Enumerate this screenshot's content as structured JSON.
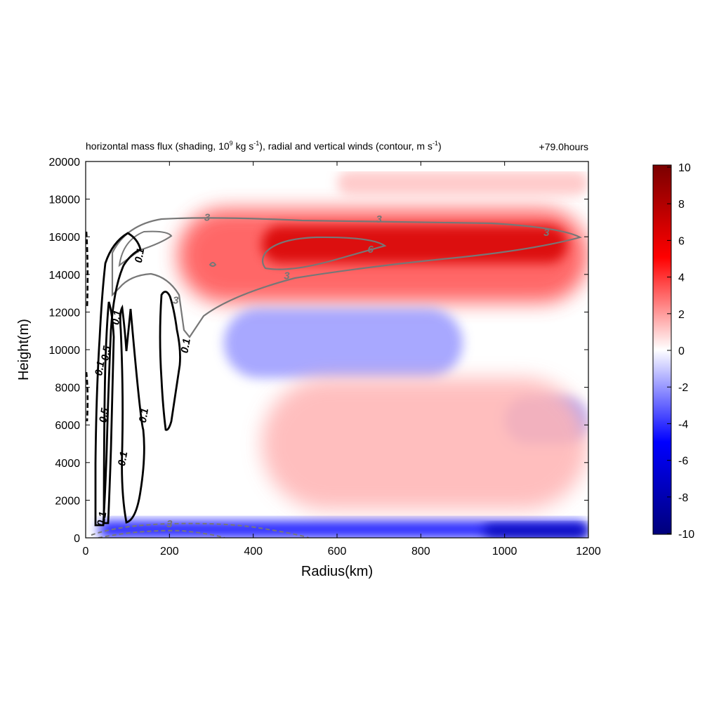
{
  "chart_data": {
    "type": "heatmap",
    "title": "horizontal mass flux (shading, 10",
    "title_sup1": "9",
    "title_mid": " kg s",
    "title_sup2": "-1",
    "title_mid2": "), radial and vertical winds (contour, m s",
    "title_sup3": "-1",
    "title_end": ")",
    "time_label": "+79.0hours",
    "xlabel": "Radius(km)",
    "ylabel": "Height(m)",
    "xlim": [
      0,
      1200
    ],
    "ylim": [
      0,
      20000
    ],
    "x_ticks": [
      0,
      200,
      400,
      600,
      800,
      1000,
      1200
    ],
    "y_ticks": [
      0,
      2000,
      4000,
      6000,
      8000,
      10000,
      12000,
      14000,
      16000,
      18000,
      20000
    ],
    "colorbar": {
      "range": [
        -10,
        10
      ],
      "ticks": [
        10,
        8,
        6,
        4,
        2,
        0,
        -2,
        -4,
        -6,
        -8,
        -10
      ],
      "colors": [
        "#00007a",
        "#0000ff",
        "#ffffff",
        "#ff0000",
        "#7a0000"
      ]
    },
    "shading_regions": [
      {
        "name": "outflow",
        "x": [
          220,
          1200
        ],
        "y": [
          12500,
          17500
        ],
        "value": 3.5
      },
      {
        "name": "outflow-core",
        "x": [
          420,
          1150
        ],
        "y": [
          14600,
          16600
        ],
        "value": 6.5
      },
      {
        "name": "upper-weak",
        "x": [
          600,
          1200
        ],
        "y": [
          18200,
          19500
        ],
        "value": 1.2
      },
      {
        "name": "mid-negative",
        "x": [
          330,
          900
        ],
        "y": [
          8500,
          12200
        ],
        "value": -2.0
      },
      {
        "name": "mid-negative-east",
        "x": [
          1000,
          1200
        ],
        "y": [
          5000,
          7500
        ],
        "value": -2.0
      },
      {
        "name": "mid-positive",
        "x": [
          420,
          1200
        ],
        "y": [
          1500,
          8500
        ],
        "value": 1.5
      },
      {
        "name": "inflow",
        "x": [
          30,
          1200
        ],
        "y": [
          0,
          900
        ],
        "value": -5.0
      },
      {
        "name": "inflow-core",
        "x": [
          950,
          1200
        ],
        "y": [
          0,
          700
        ],
        "value": -8.0
      }
    ],
    "contour_labels": [
      {
        "text": "3",
        "x": 290,
        "y": 17000,
        "color": "#777777"
      },
      {
        "text": "3",
        "x": 700,
        "y": 16900,
        "color": "#777777"
      },
      {
        "text": "3",
        "x": 1100,
        "y": 16200,
        "color": "#777777"
      },
      {
        "text": "6",
        "x": 680,
        "y": 15300,
        "color": "#777777"
      },
      {
        "text": "3",
        "x": 480,
        "y": 13900,
        "color": "#777777"
      },
      {
        "text": "3",
        "x": 215,
        "y": 12600,
        "color": "#777777"
      },
      {
        "text": "3",
        "x": 200,
        "y": 700,
        "color": "#777777"
      },
      {
        "text": "0.1",
        "x": 130,
        "y": 15000,
        "color": "#000000"
      },
      {
        "text": "0.1",
        "x": 75,
        "y": 11700,
        "color": "#000000"
      },
      {
        "text": "0.1",
        "x": 240,
        "y": 10200,
        "color": "#000000"
      },
      {
        "text": "0.5",
        "x": 50,
        "y": 9800,
        "color": "#000000"
      },
      {
        "text": "0.1",
        "x": 35,
        "y": 9000,
        "color": "#000000"
      },
      {
        "text": "0.5",
        "x": 45,
        "y": 6500,
        "color": "#000000"
      },
      {
        "text": "0.1",
        "x": 140,
        "y": 6500,
        "color": "#000000"
      },
      {
        "text": "0.1",
        "x": 90,
        "y": 4200,
        "color": "#000000"
      },
      {
        "text": "0.1",
        "x": 40,
        "y": 1000,
        "color": "#000000"
      }
    ]
  }
}
